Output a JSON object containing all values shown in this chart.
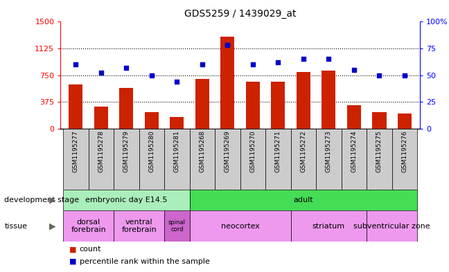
{
  "title": "GDS5259 / 1439029_at",
  "samples": [
    "GSM1195277",
    "GSM1195278",
    "GSM1195279",
    "GSM1195280",
    "GSM1195281",
    "GSM1195268",
    "GSM1195269",
    "GSM1195270",
    "GSM1195271",
    "GSM1195272",
    "GSM1195273",
    "GSM1195274",
    "GSM1195275",
    "GSM1195276"
  ],
  "counts": [
    620,
    310,
    570,
    230,
    170,
    700,
    1290,
    660,
    660,
    790,
    810,
    330,
    230,
    210
  ],
  "percentiles": [
    60,
    52,
    57,
    50,
    44,
    60,
    78,
    60,
    62,
    65,
    65,
    55,
    50,
    50
  ],
  "ylim_left": [
    0,
    1500
  ],
  "ylim_right": [
    0,
    100
  ],
  "yticks_left": [
    0,
    375,
    750,
    1125,
    1500
  ],
  "yticks_right": [
    0,
    25,
    50,
    75,
    100
  ],
  "bar_color": "#cc2200",
  "dot_color": "#0000cc",
  "dev_stage_groups": [
    {
      "label": "embryonic day E14.5",
      "start": 0,
      "end": 5,
      "color": "#aaeebb"
    },
    {
      "label": "adult",
      "start": 5,
      "end": 14,
      "color": "#44dd55"
    }
  ],
  "tissue_groups": [
    {
      "label": "dorsal\nforebrain",
      "start": 0,
      "end": 2,
      "color": "#ee99ee"
    },
    {
      "label": "ventral\nforebrain",
      "start": 2,
      "end": 4,
      "color": "#ee99ee"
    },
    {
      "label": "spinal\ncord",
      "start": 4,
      "end": 5,
      "color": "#cc66cc"
    },
    {
      "label": "neocortex",
      "start": 5,
      "end": 9,
      "color": "#ee99ee"
    },
    {
      "label": "striatum",
      "start": 9,
      "end": 12,
      "color": "#ee99ee"
    },
    {
      "label": "subventricular zone",
      "start": 12,
      "end": 14,
      "color": "#ee99ee"
    }
  ],
  "legend_count_label": "count",
  "legend_pct_label": "percentile rank within the sample",
  "dev_stage_label": "development stage",
  "tissue_label": "tissue",
  "tick_bg_color": "#cccccc"
}
